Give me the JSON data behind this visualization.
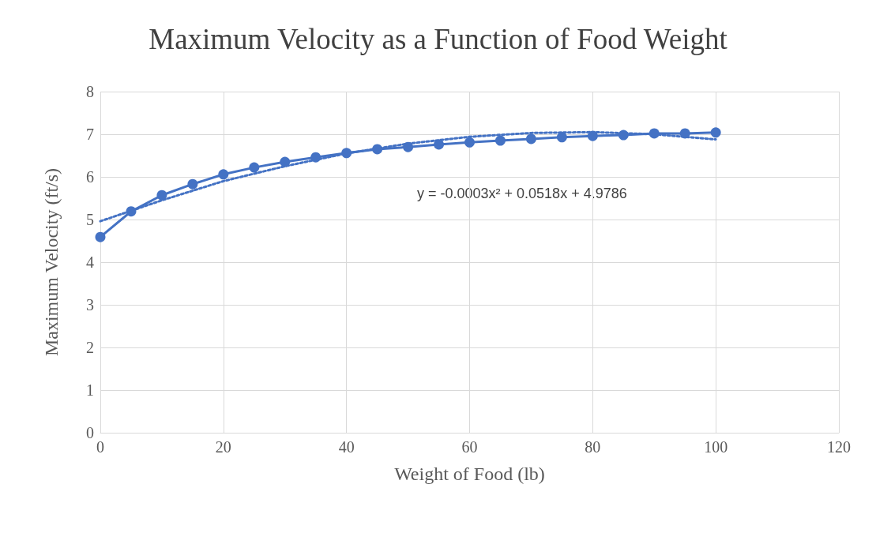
{
  "chart_data": {
    "type": "line",
    "title": "Maximum Velocity as a Function of Food Weight",
    "xlabel": "Weight of Food (lb)",
    "ylabel": "Maximum Velocity (ft/s)",
    "x": [
      0,
      5,
      10,
      15,
      20,
      25,
      30,
      35,
      40,
      45,
      50,
      55,
      60,
      65,
      70,
      75,
      80,
      85,
      90,
      95,
      100
    ],
    "series": [
      {
        "color": "#4472c4",
        "marker": "circle",
        "line_style": "solid",
        "values": [
          4.59,
          5.19,
          5.57,
          5.83,
          6.06,
          6.22,
          6.35,
          6.46,
          6.56,
          6.65,
          6.7,
          6.76,
          6.81,
          6.85,
          6.89,
          6.93,
          6.96,
          6.98,
          7.02,
          7.02,
          7.04
        ]
      },
      {
        "color": "#4472c4",
        "marker": "none",
        "line_style": "dotted",
        "x": [
          0,
          10,
          20,
          30,
          40,
          50,
          60,
          70,
          80,
          90,
          100
        ],
        "values": [
          4.96,
          5.45,
          5.9,
          6.25,
          6.55,
          6.78,
          6.94,
          7.03,
          7.05,
          7.0,
          6.88
        ]
      }
    ],
    "annotations": [
      "y = -0.0003x² + 0.0518x + 4.9786"
    ],
    "xlim": [
      0,
      120
    ],
    "xticks": [
      0,
      20,
      40,
      60,
      80,
      100,
      120
    ],
    "ylim": [
      0,
      8
    ],
    "yticks": [
      0,
      1,
      2,
      3,
      4,
      5,
      6,
      7,
      8
    ],
    "grid": true
  }
}
